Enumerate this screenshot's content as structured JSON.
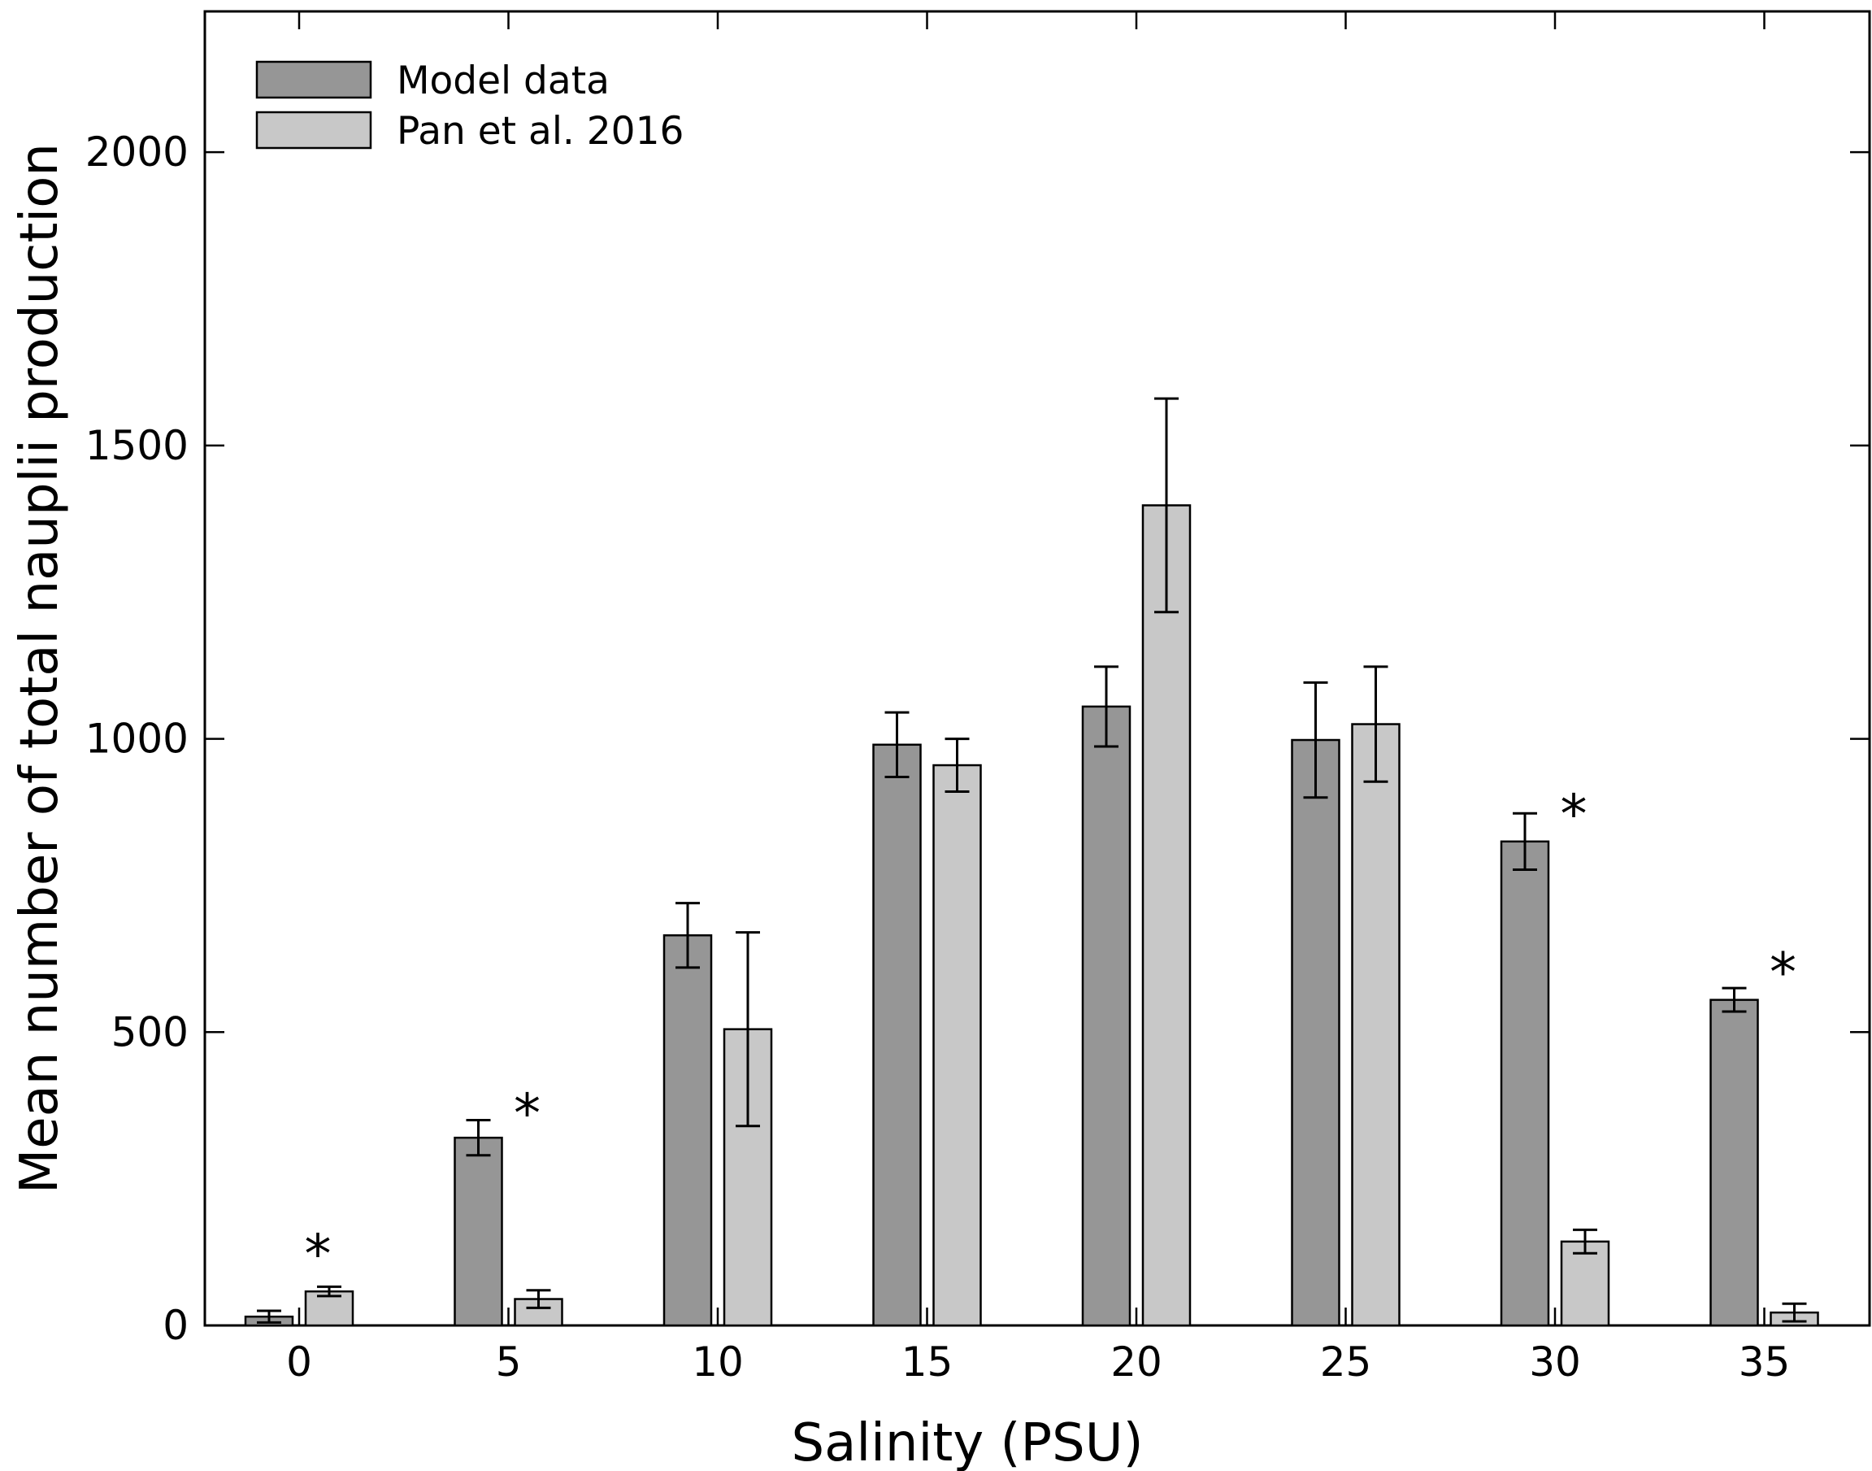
{
  "chart_data": {
    "type": "bar",
    "title": "",
    "xlabel": "Salinity (PSU)",
    "ylabel": "Mean number of total nauplii production",
    "categories": [
      "0",
      "5",
      "10",
      "15",
      "20",
      "25",
      "30",
      "35"
    ],
    "ylim": [
      0,
      2240
    ],
    "yticks": [
      0,
      500,
      1000,
      1500,
      2000
    ],
    "legend_position": "top-left",
    "series": [
      {
        "name": "Model data",
        "color": "#969696",
        "values": [
          15,
          320,
          665,
          990,
          1055,
          998,
          825,
          555
        ],
        "errors": [
          10,
          30,
          55,
          55,
          68,
          98,
          48,
          20
        ]
      },
      {
        "name": "Pan et al. 2016",
        "color": "#c8c8c8",
        "values": [
          58,
          45,
          505,
          955,
          1398,
          1025,
          143,
          22
        ],
        "errors": [
          8,
          15,
          165,
          45,
          182,
          98,
          20,
          15
        ]
      }
    ],
    "annotations": [
      {
        "category": "0",
        "text": "*",
        "y": 140
      },
      {
        "category": "5",
        "text": "*",
        "y": 380
      },
      {
        "category": "30",
        "text": "*",
        "y": 890
      },
      {
        "category": "35",
        "text": "*",
        "y": 620
      }
    ]
  }
}
